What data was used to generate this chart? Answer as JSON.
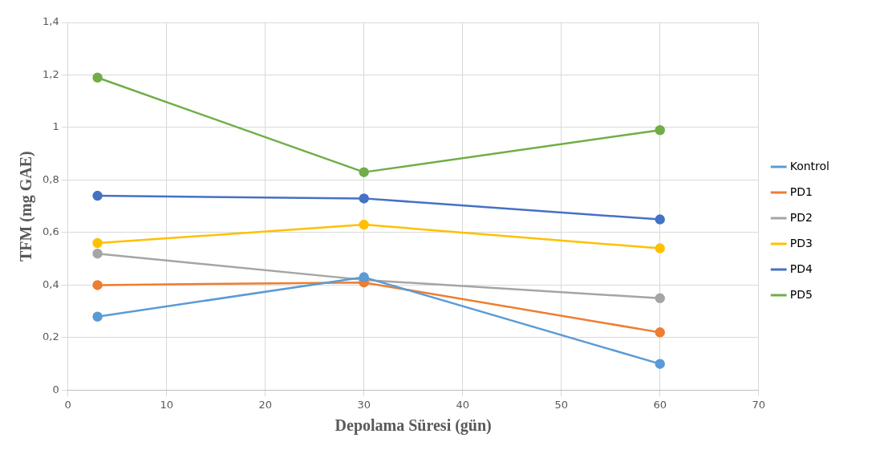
{
  "chart_data": {
    "type": "line",
    "xlabel": "Depolama Süresi (gün)",
    "ylabel": "TFM (mg GAE)",
    "x": [
      3,
      30,
      60
    ],
    "series": [
      {
        "name": "Kontrol",
        "color": "#5b9bd5",
        "values": [
          0.28,
          0.43,
          0.1
        ]
      },
      {
        "name": "PD1",
        "color": "#ed7d31",
        "values": [
          0.4,
          0.41,
          0.22
        ]
      },
      {
        "name": "PD2",
        "color": "#a5a5a5",
        "values": [
          0.52,
          0.42,
          0.35
        ]
      },
      {
        "name": "PD3",
        "color": "#ffc000",
        "values": [
          0.56,
          0.63,
          0.54
        ]
      },
      {
        "name": "PD4",
        "color": "#4472c4",
        "values": [
          0.74,
          0.73,
          0.65
        ]
      },
      {
        "name": "PD5",
        "color": "#70ad47",
        "values": [
          1.19,
          0.83,
          0.99
        ]
      }
    ],
    "xlim": [
      0,
      70
    ],
    "xticks": [
      0,
      10,
      20,
      30,
      40,
      50,
      60,
      70
    ],
    "ylim": [
      0,
      1.4
    ],
    "yticks": [
      0,
      {
        "value": 0.2,
        "label": "0,2"
      },
      {
        "value": 0.4,
        "label": "0,4"
      },
      {
        "value": 0.6,
        "label": "0,6"
      },
      {
        "value": 0.8,
        "label": "0,8"
      },
      1,
      {
        "value": 1.2,
        "label": "1,2"
      },
      {
        "value": 1.4,
        "label": "1,4"
      }
    ],
    "grid": true,
    "legend": "right",
    "marker": "circle",
    "line_style": "solid"
  }
}
